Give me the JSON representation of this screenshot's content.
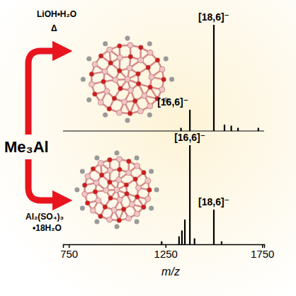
{
  "chart_data": [
    {
      "type": "stem",
      "reactant": "Me₃Al",
      "reagents": [
        "LiOH•H₂O",
        "Δ"
      ],
      "x": [
        1330,
        1376,
        1500,
        1555,
        1590,
        1625,
        1730
      ],
      "values": [
        3,
        20,
        100,
        6,
        5,
        3,
        3
      ],
      "color": "#000000",
      "xlim": [
        720,
        1760
      ],
      "ylim": [
        0,
        100
      ],
      "tick_labels": false,
      "annotations": [
        {
          "text": "[16,6]⁻",
          "x": 1376
        },
        {
          "text": "[18,6]⁻",
          "x": 1500
        }
      ]
    },
    {
      "type": "stem",
      "reagents": [
        "Al₂(SO₄)₃",
        "•18H₂O"
      ],
      "x": [
        1230,
        1320,
        1335,
        1350,
        1376,
        1400,
        1500,
        1540
      ],
      "values": [
        3,
        8,
        14,
        25,
        100,
        6,
        35,
        3
      ],
      "color": "#000000",
      "xlim": [
        720,
        1760
      ],
      "ylim": [
        0,
        100
      ],
      "xticks": [
        750,
        1250,
        1750
      ],
      "xlabel": "m/z",
      "annotations": [
        {
          "text": "[16,6]⁻",
          "x": 1376
        },
        {
          "text": "[18,6]⁻",
          "x": 1500
        }
      ]
    }
  ]
}
